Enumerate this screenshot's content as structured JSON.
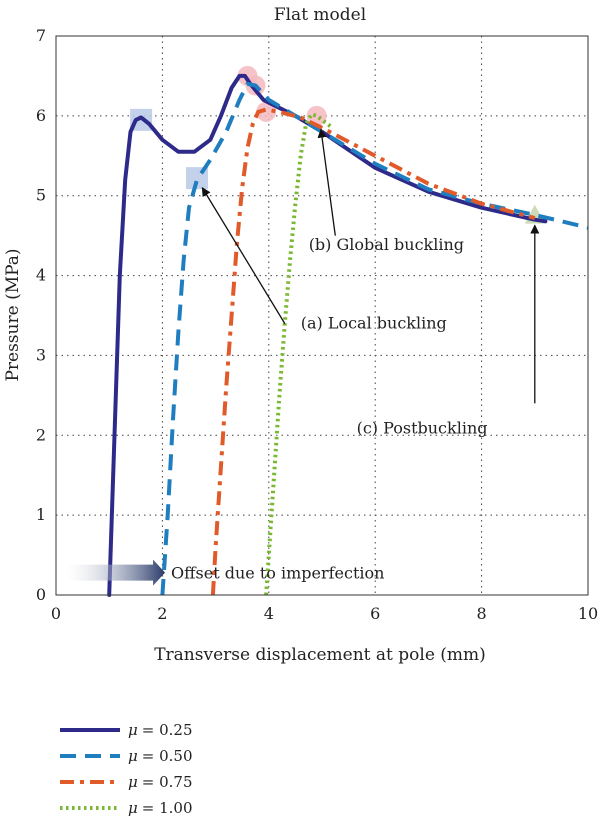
{
  "chart_data": {
    "type": "line",
    "title": "Flat model",
    "xlabel": "Transverse displacement at pole (mm)",
    "ylabel": "Pressure (MPa)",
    "xlim": [
      0,
      10
    ],
    "ylim": [
      0,
      7
    ],
    "xticks": [
      "0",
      "2",
      "4",
      "6",
      "8",
      "10"
    ],
    "yticks": [
      "0",
      "1",
      "2",
      "3",
      "4",
      "5",
      "6",
      "7"
    ],
    "grid": true,
    "legend_position": "bottom-left, outside plot",
    "series": [
      {
        "name": "μ = 0.25",
        "legend_symbol": "μ",
        "legend_value": "= 0.25",
        "color": "#2e2a8a",
        "style": "solid",
        "x": [
          1.0,
          1.1,
          1.2,
          1.3,
          1.4,
          1.5,
          1.6,
          1.75,
          2.0,
          2.3,
          2.6,
          2.9,
          3.1,
          3.3,
          3.45,
          3.55,
          3.65,
          3.9,
          4.5,
          5.0,
          6.0,
          7.0,
          8.0,
          9.0,
          9.2
        ],
        "y": [
          0.0,
          2.0,
          4.0,
          5.2,
          5.8,
          5.95,
          5.98,
          5.9,
          5.7,
          5.55,
          5.55,
          5.7,
          6.0,
          6.35,
          6.5,
          6.5,
          6.4,
          6.2,
          6.0,
          5.8,
          5.35,
          5.05,
          4.85,
          4.7,
          4.68
        ]
      },
      {
        "name": "μ = 0.50",
        "legend_symbol": "μ",
        "legend_value": "= 0.50",
        "color": "#1f7ec0",
        "style": "dashed",
        "x": [
          2.0,
          2.1,
          2.2,
          2.3,
          2.4,
          2.5,
          2.65,
          2.9,
          3.2,
          3.45,
          3.6,
          3.75,
          4.0,
          4.5,
          5.0,
          6.0,
          7.0,
          8.0,
          9.0,
          10.0
        ],
        "y": [
          0.0,
          1.0,
          2.2,
          3.3,
          4.2,
          4.85,
          5.2,
          5.45,
          5.8,
          6.2,
          6.4,
          6.38,
          6.2,
          6.0,
          5.8,
          5.4,
          5.08,
          4.9,
          4.76,
          4.6
        ]
      },
      {
        "name": "μ = 0.75",
        "legend_symbol": "μ",
        "legend_value": "= 0.75",
        "color": "#e05a2a",
        "style": "dash-dot",
        "x": [
          2.95,
          3.0,
          3.1,
          3.2,
          3.3,
          3.4,
          3.5,
          3.6,
          3.7,
          3.8,
          3.95,
          4.2,
          4.6,
          5.0,
          6.0,
          7.0,
          8.0,
          9.0
        ],
        "y": [
          0.0,
          0.6,
          1.6,
          2.6,
          3.5,
          4.4,
          5.1,
          5.6,
          5.9,
          6.05,
          6.08,
          6.05,
          5.98,
          5.85,
          5.5,
          5.15,
          4.9,
          4.72
        ]
      },
      {
        "name": "μ = 1.00",
        "legend_symbol": "μ",
        "legend_value": "= 1.00",
        "color": "#7ab832",
        "style": "dotted",
        "x": [
          3.95,
          4.0,
          4.1,
          4.2,
          4.3,
          4.4,
          4.5,
          4.6,
          4.7,
          4.8,
          4.9,
          5.0,
          5.2
        ],
        "y": [
          0.0,
          0.5,
          1.5,
          2.5,
          3.4,
          4.2,
          4.9,
          5.5,
          5.9,
          6.02,
          6.0,
          5.95,
          5.85
        ]
      }
    ],
    "markers": [
      {
        "shape": "square",
        "color": "#b9c9e8",
        "x": 1.6,
        "y": 5.95
      },
      {
        "shape": "square",
        "color": "#b9c9e8",
        "x": 2.65,
        "y": 5.22
      },
      {
        "shape": "circle",
        "color": "#f4b8c0",
        "x": 3.6,
        "y": 6.5
      },
      {
        "shape": "circle",
        "color": "#f4b8c0",
        "x": 3.75,
        "y": 6.38
      },
      {
        "shape": "circle",
        "color": "#f4b8c0",
        "x": 3.95,
        "y": 6.05
      },
      {
        "shape": "circle",
        "color": "#f4b8c0",
        "x": 4.9,
        "y": 6.0
      },
      {
        "shape": "triangle",
        "color": "#c8d8b0",
        "x": 9.0,
        "y": 4.75
      }
    ],
    "annotations": [
      {
        "text": "(b) Global buckling",
        "text_x": 4.75,
        "text_y": 4.32,
        "arrow_from": [
          5.25,
          4.5
        ],
        "arrow_to": [
          4.98,
          5.83
        ]
      },
      {
        "text": "(a) Local buckling",
        "text_x": 4.6,
        "text_y": 3.34,
        "arrow_from": [
          4.3,
          3.4
        ],
        "arrow_to": [
          2.75,
          5.1
        ]
      },
      {
        "text": "(c) Postbuckling",
        "text_x": 5.65,
        "text_y": 2.02,
        "arrow_from": [
          9.0,
          2.4
        ],
        "arrow_to": [
          9.0,
          4.63
        ]
      }
    ],
    "offset_arrow": {
      "text": "Offset due to imperfection",
      "from_x": 0.2,
      "to_x": 2.05,
      "y": 0.28,
      "color": "#283a6a"
    }
  }
}
